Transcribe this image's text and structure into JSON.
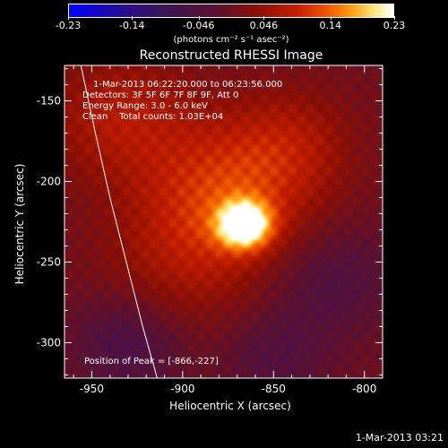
{
  "colorbar": {
    "ticks": [
      "-0.23",
      "-0.14",
      "-0.046",
      "0.046",
      "0.14",
      "0.23"
    ],
    "units": "(photons cm⁻² s⁻¹ asec⁻²)",
    "colors": [
      "#0000ff",
      "#2a0e8a",
      "#5a1130",
      "#8a0f06",
      "#c41e00",
      "#f05a00",
      "#fda61a",
      "#ffe77c",
      "#ffffff"
    ]
  },
  "header": {
    "title": "Reconstructed RHESSI Image"
  },
  "info": {
    "time_range": "1-Mar-2013 06:22:20.000 to 06:23:56.000",
    "detectors": "Detectors: 3F 5F 6F 7F 8F 9F, Att 0",
    "energy_range": "Energy Range: 3.0 - 6.0 keV",
    "clean_counts": "Clean    Total counts: 1.03E+04",
    "peak_position": "Position of Peak = [-866,-227]"
  },
  "footer": {
    "date": "1-Mar-2013 03:21"
  },
  "chart_data": {
    "type": "heatmap",
    "title": "Reconstructed RHESSI Image",
    "xlabel": "Heliocentric X (arcsec)",
    "ylabel": "Heliocentric Y (arcsec)",
    "xlim": [
      -965,
      -790
    ],
    "ylim": [
      -322,
      -128
    ],
    "xticks": [
      -950,
      -900,
      -850,
      -800
    ],
    "yticks": [
      -150,
      -200,
      -250,
      -300
    ],
    "xtick_labels": [
      "-950",
      "-900",
      "-850",
      "-800"
    ],
    "ytick_labels": [
      "-150",
      "-200",
      "-250",
      "-300"
    ],
    "colorbar_range": [
      -0.23,
      0.23
    ],
    "peak": {
      "x": -866,
      "y": -227,
      "value": 0.23
    },
    "sources": [
      {
        "x": -866,
        "y": -227,
        "value": 0.23,
        "sigma": 10
      },
      {
        "x": -875,
        "y": -210,
        "value": 0.11,
        "sigma": 34
      },
      {
        "x": -935,
        "y": -160,
        "value": 0.07,
        "sigma": 28
      },
      {
        "x": -840,
        "y": -175,
        "value": 0.05,
        "sigma": 24
      },
      {
        "x": -905,
        "y": -255,
        "value": 0.04,
        "sigma": 30
      },
      {
        "x": -820,
        "y": -260,
        "value": -0.05,
        "sigma": 26
      },
      {
        "x": -930,
        "y": -300,
        "value": -0.06,
        "sigma": 22
      },
      {
        "x": -850,
        "y": -310,
        "value": -0.04,
        "sigma": 20
      }
    ],
    "limb_curve": [
      {
        "x": -956,
        "y": -128
      },
      {
        "x": -948,
        "y": -170
      },
      {
        "x": -940,
        "y": -210
      },
      {
        "x": -931,
        "y": -250
      },
      {
        "x": -922,
        "y": -290
      },
      {
        "x": -914,
        "y": -322
      }
    ]
  }
}
